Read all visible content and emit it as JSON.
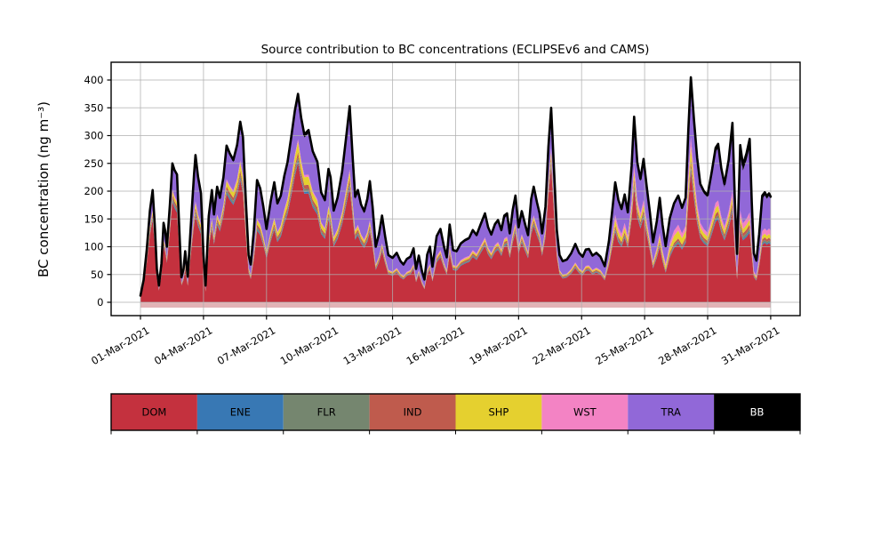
{
  "title": "Source contribution to BC concentrations (ECLIPSEv6 and CAMS)",
  "axes": {
    "ylabel": "BC concentration (ng m⁻³)",
    "yticks": [
      0,
      50,
      100,
      150,
      200,
      250,
      300,
      350,
      400
    ],
    "xticks": [
      {
        "day": 0,
        "label": "01-Mar-2021"
      },
      {
        "day": 3,
        "label": "04-Mar-2021"
      },
      {
        "day": 6,
        "label": "07-Mar-2021"
      },
      {
        "day": 9,
        "label": "10-Mar-2021"
      },
      {
        "day": 12,
        "label": "13-Mar-2021"
      },
      {
        "day": 15,
        "label": "16-Mar-2021"
      },
      {
        "day": 18,
        "label": "19-Mar-2021"
      },
      {
        "day": 21,
        "label": "22-Mar-2021"
      },
      {
        "day": 24,
        "label": "25-Mar-2021"
      },
      {
        "day": 27,
        "label": "28-Mar-2021"
      },
      {
        "day": 30,
        "label": "31-Mar-2021"
      }
    ],
    "grid_color": "#b0b0b0",
    "axis_color": "#000000",
    "baseline_strip_color": "#dba0a4"
  },
  "legend": {
    "items": [
      {
        "label": "DOM",
        "color": "#c4313e",
        "text_color": "#000000"
      },
      {
        "label": "ENE",
        "color": "#3878b4",
        "text_color": "#000000"
      },
      {
        "label": "FLR",
        "color": "#75866f",
        "text_color": "#000000"
      },
      {
        "label": "IND",
        "color": "#bf5b4d",
        "text_color": "#000000"
      },
      {
        "label": "SHP",
        "color": "#e5d02f",
        "text_color": "#000000"
      },
      {
        "label": "WST",
        "color": "#f383c4",
        "text_color": "#000000"
      },
      {
        "label": "TRA",
        "color": "#9168d8",
        "text_color": "#000000"
      },
      {
        "label": "BB",
        "color": "#000000",
        "text_color": "#ffffff"
      }
    ]
  },
  "chart_data": {
    "type": "area",
    "stacked": true,
    "title": "Source contribution to BC concentrations (ECLIPSEv6 and CAMS)",
    "xlabel": "",
    "ylabel": "BC concentration (ng m⁻³)",
    "x_units": "days since 01-Mar-2021 00:00",
    "x_range_days": [
      0,
      30
    ],
    "ylim": [
      0,
      400
    ],
    "grid": true,
    "legend_position": "bottom",
    "note": "total_points = [day, total BC ng/m3] read from the black stack-top line; component series given as fraction-of-total control points [day, fraction]; DOM is the remainder (dominant bottom layer).",
    "total_points": [
      [
        0.0,
        12
      ],
      [
        0.15,
        40
      ],
      [
        0.3,
        95
      ],
      [
        0.45,
        165
      ],
      [
        0.58,
        202
      ],
      [
        0.68,
        140
      ],
      [
        0.78,
        60
      ],
      [
        0.88,
        30
      ],
      [
        1.0,
        70
      ],
      [
        1.1,
        143
      ],
      [
        1.18,
        128
      ],
      [
        1.26,
        100
      ],
      [
        1.4,
        175
      ],
      [
        1.52,
        250
      ],
      [
        1.62,
        238
      ],
      [
        1.74,
        230
      ],
      [
        1.85,
        130
      ],
      [
        1.95,
        45
      ],
      [
        2.05,
        60
      ],
      [
        2.13,
        92
      ],
      [
        2.25,
        46
      ],
      [
        2.4,
        140
      ],
      [
        2.55,
        230
      ],
      [
        2.62,
        265
      ],
      [
        2.74,
        226
      ],
      [
        2.88,
        196
      ],
      [
        3.0,
        85
      ],
      [
        3.1,
        30
      ],
      [
        3.25,
        155
      ],
      [
        3.4,
        202
      ],
      [
        3.5,
        158
      ],
      [
        3.65,
        208
      ],
      [
        3.78,
        188
      ],
      [
        3.95,
        225
      ],
      [
        4.1,
        282
      ],
      [
        4.25,
        268
      ],
      [
        4.42,
        256
      ],
      [
        4.6,
        283
      ],
      [
        4.75,
        325
      ],
      [
        4.88,
        297
      ],
      [
        5.02,
        180
      ],
      [
        5.15,
        85
      ],
      [
        5.25,
        68
      ],
      [
        5.4,
        130
      ],
      [
        5.55,
        220
      ],
      [
        5.7,
        205
      ],
      [
        5.85,
        172
      ],
      [
        6.0,
        132
      ],
      [
        6.2,
        182
      ],
      [
        6.37,
        216
      ],
      [
        6.52,
        178
      ],
      [
        6.68,
        192
      ],
      [
        6.85,
        228
      ],
      [
        7.0,
        252
      ],
      [
        7.18,
        298
      ],
      [
        7.35,
        345
      ],
      [
        7.5,
        375
      ],
      [
        7.65,
        332
      ],
      [
        7.8,
        302
      ],
      [
        8.0,
        310
      ],
      [
        8.2,
        272
      ],
      [
        8.42,
        253
      ],
      [
        8.6,
        198
      ],
      [
        8.78,
        184
      ],
      [
        8.95,
        240
      ],
      [
        9.05,
        225
      ],
      [
        9.2,
        165
      ],
      [
        9.38,
        188
      ],
      [
        9.6,
        235
      ],
      [
        9.8,
        300
      ],
      [
        9.96,
        353
      ],
      [
        10.1,
        262
      ],
      [
        10.22,
        190
      ],
      [
        10.35,
        202
      ],
      [
        10.5,
        176
      ],
      [
        10.65,
        164
      ],
      [
        10.8,
        186
      ],
      [
        10.92,
        218
      ],
      [
        11.05,
        172
      ],
      [
        11.2,
        100
      ],
      [
        11.35,
        122
      ],
      [
        11.5,
        156
      ],
      [
        11.65,
        118
      ],
      [
        11.8,
        85
      ],
      [
        12.0,
        80
      ],
      [
        12.2,
        89
      ],
      [
        12.38,
        74
      ],
      [
        12.52,
        68
      ],
      [
        12.68,
        78
      ],
      [
        12.85,
        82
      ],
      [
        13.0,
        97
      ],
      [
        13.12,
        60
      ],
      [
        13.25,
        84
      ],
      [
        13.4,
        56
      ],
      [
        13.52,
        41
      ],
      [
        13.65,
        86
      ],
      [
        13.78,
        100
      ],
      [
        13.9,
        64
      ],
      [
        14.1,
        119
      ],
      [
        14.28,
        132
      ],
      [
        14.45,
        100
      ],
      [
        14.58,
        81
      ],
      [
        14.72,
        140
      ],
      [
        14.88,
        94
      ],
      [
        15.05,
        92
      ],
      [
        15.25,
        106
      ],
      [
        15.45,
        112
      ],
      [
        15.65,
        116
      ],
      [
        15.82,
        130
      ],
      [
        16.0,
        121
      ],
      [
        16.18,
        139
      ],
      [
        16.4,
        160
      ],
      [
        16.55,
        135
      ],
      [
        16.7,
        122
      ],
      [
        16.88,
        141
      ],
      [
        17.02,
        148
      ],
      [
        17.18,
        130
      ],
      [
        17.32,
        156
      ],
      [
        17.45,
        160
      ],
      [
        17.58,
        124
      ],
      [
        17.72,
        166
      ],
      [
        17.85,
        192
      ],
      [
        18.0,
        135
      ],
      [
        18.15,
        164
      ],
      [
        18.32,
        139
      ],
      [
        18.45,
        121
      ],
      [
        18.6,
        186
      ],
      [
        18.72,
        208
      ],
      [
        18.88,
        179
      ],
      [
        19.0,
        160
      ],
      [
        19.12,
        124
      ],
      [
        19.28,
        172
      ],
      [
        19.42,
        280
      ],
      [
        19.55,
        350
      ],
      [
        19.7,
        228
      ],
      [
        19.82,
        130
      ],
      [
        19.95,
        85
      ],
      [
        20.1,
        74
      ],
      [
        20.3,
        77
      ],
      [
        20.5,
        88
      ],
      [
        20.7,
        105
      ],
      [
        20.88,
        89
      ],
      [
        21.05,
        82
      ],
      [
        21.2,
        95
      ],
      [
        21.35,
        96
      ],
      [
        21.52,
        84
      ],
      [
        21.7,
        89
      ],
      [
        21.9,
        82
      ],
      [
        22.1,
        65
      ],
      [
        22.3,
        110
      ],
      [
        22.45,
        162
      ],
      [
        22.6,
        216
      ],
      [
        22.75,
        184
      ],
      [
        22.9,
        168
      ],
      [
        23.05,
        194
      ],
      [
        23.2,
        162
      ],
      [
        23.38,
        245
      ],
      [
        23.5,
        334
      ],
      [
        23.65,
        252
      ],
      [
        23.8,
        222
      ],
      [
        23.95,
        258
      ],
      [
        24.1,
        208
      ],
      [
        24.25,
        162
      ],
      [
        24.4,
        108
      ],
      [
        24.58,
        146
      ],
      [
        24.72,
        188
      ],
      [
        24.85,
        140
      ],
      [
        25.0,
        101
      ],
      [
        25.2,
        152
      ],
      [
        25.4,
        178
      ],
      [
        25.6,
        192
      ],
      [
        25.78,
        170
      ],
      [
        25.95,
        188
      ],
      [
        26.08,
        310
      ],
      [
        26.2,
        405
      ],
      [
        26.35,
        328
      ],
      [
        26.5,
        260
      ],
      [
        26.65,
        213
      ],
      [
        26.82,
        200
      ],
      [
        27.0,
        193
      ],
      [
        27.2,
        236
      ],
      [
        27.38,
        278
      ],
      [
        27.5,
        285
      ],
      [
        27.65,
        241
      ],
      [
        27.8,
        213
      ],
      [
        28.0,
        256
      ],
      [
        28.18,
        323
      ],
      [
        28.3,
        178
      ],
      [
        28.4,
        87
      ],
      [
        28.55,
        283
      ],
      [
        28.68,
        247
      ],
      [
        28.85,
        268
      ],
      [
        29.0,
        294
      ],
      [
        29.1,
        180
      ],
      [
        29.2,
        88
      ],
      [
        29.32,
        75
      ],
      [
        29.45,
        122
      ],
      [
        29.6,
        192
      ],
      [
        29.72,
        198
      ],
      [
        29.82,
        191
      ],
      [
        29.92,
        196
      ],
      [
        30.0,
        190
      ]
    ],
    "series": [
      {
        "name": "DOM",
        "color": "#c4313e",
        "mode": "remainder"
      },
      {
        "name": "ENE",
        "color": "#3878b4",
        "frac": [
          [
            0,
            0.011
          ],
          [
            30,
            0.011
          ]
        ]
      },
      {
        "name": "FLR",
        "color": "#75866f",
        "frac": [
          [
            0,
            0.016
          ],
          [
            30,
            0.016
          ]
        ]
      },
      {
        "name": "IND",
        "color": "#bf5b4d",
        "frac": [
          [
            0,
            0.024
          ],
          [
            30,
            0.024
          ]
        ]
      },
      {
        "name": "SHP",
        "color": "#e5d02f",
        "frac": [
          [
            0,
            0.025
          ],
          [
            4,
            0.03
          ],
          [
            4.8,
            0.045
          ],
          [
            6,
            0.03
          ],
          [
            7,
            0.05
          ],
          [
            8.5,
            0.045
          ],
          [
            10,
            0.03
          ],
          [
            13,
            0.025
          ],
          [
            19,
            0.025
          ],
          [
            22,
            0.03
          ],
          [
            22.6,
            0.05
          ],
          [
            23.5,
            0.04
          ],
          [
            24.5,
            0.035
          ],
          [
            25,
            0.06
          ],
          [
            25.5,
            0.075
          ],
          [
            26,
            0.065
          ],
          [
            26.5,
            0.045
          ],
          [
            27,
            0.04
          ],
          [
            28,
            0.035
          ],
          [
            29,
            0.03
          ],
          [
            30,
            0.035
          ]
        ]
      },
      {
        "name": "WST",
        "color": "#f383c4",
        "frac": [
          [
            0,
            0.012
          ],
          [
            10,
            0.012
          ],
          [
            14,
            0.022
          ],
          [
            15.5,
            0.02
          ],
          [
            20,
            0.015
          ],
          [
            22.3,
            0.02
          ],
          [
            22.7,
            0.045
          ],
          [
            23.5,
            0.035
          ],
          [
            24.5,
            0.03
          ],
          [
            25,
            0.045
          ],
          [
            25.6,
            0.055
          ],
          [
            26.3,
            0.04
          ],
          [
            27,
            0.035
          ],
          [
            28,
            0.03
          ],
          [
            28.6,
            0.04
          ],
          [
            29.5,
            0.045
          ],
          [
            30,
            0.05
          ]
        ]
      },
      {
        "name": "TRA",
        "color": "#9168d8",
        "frac": [
          [
            0,
            0.14
          ],
          [
            0.55,
            0.16
          ],
          [
            1,
            0.2
          ],
          [
            1.5,
            0.17
          ],
          [
            2,
            0.22
          ],
          [
            2.62,
            0.3
          ],
          [
            3,
            0.25
          ],
          [
            3.4,
            0.24
          ],
          [
            4,
            0.2
          ],
          [
            4.75,
            0.2
          ],
          [
            5.2,
            0.26
          ],
          [
            5.55,
            0.3
          ],
          [
            6.37,
            0.28
          ],
          [
            7,
            0.24
          ],
          [
            7.5,
            0.2
          ],
          [
            8,
            0.24
          ],
          [
            9,
            0.26
          ],
          [
            9.96,
            0.3
          ],
          [
            10.5,
            0.28
          ],
          [
            11,
            0.3
          ],
          [
            12,
            0.28
          ],
          [
            13,
            0.26
          ],
          [
            13.5,
            0.3
          ],
          [
            14.3,
            0.26
          ],
          [
            15,
            0.26
          ],
          [
            16,
            0.25
          ],
          [
            17,
            0.24
          ],
          [
            17.8,
            0.23
          ],
          [
            18.7,
            0.22
          ],
          [
            19.25,
            0.2
          ],
          [
            19.55,
            0.18
          ],
          [
            20,
            0.3
          ],
          [
            21.5,
            0.28
          ],
          [
            22.6,
            0.25
          ],
          [
            23.5,
            0.24
          ],
          [
            24.4,
            0.3
          ],
          [
            24.7,
            0.32
          ],
          [
            25,
            0.3
          ],
          [
            25.4,
            0.26
          ],
          [
            26.2,
            0.25
          ],
          [
            26.5,
            0.3
          ],
          [
            27,
            0.33
          ],
          [
            28,
            0.33
          ],
          [
            28.2,
            0.35
          ],
          [
            28.55,
            0.38
          ],
          [
            29,
            0.4
          ],
          [
            29.2,
            0.32
          ],
          [
            29.6,
            0.3
          ],
          [
            30,
            0.3
          ]
        ]
      },
      {
        "name": "BB",
        "color": "#000000",
        "frac": [
          [
            0,
            0.015
          ],
          [
            5,
            0.015
          ],
          [
            9,
            0.02
          ],
          [
            12,
            0.03
          ],
          [
            16,
            0.025
          ],
          [
            20,
            0.03
          ],
          [
            23,
            0.02
          ],
          [
            26,
            0.015
          ],
          [
            28.5,
            0.035
          ],
          [
            29,
            0.05
          ],
          [
            30,
            0.02
          ]
        ]
      }
    ],
    "total_line": {
      "color": "#000000",
      "width": 2.6
    }
  }
}
